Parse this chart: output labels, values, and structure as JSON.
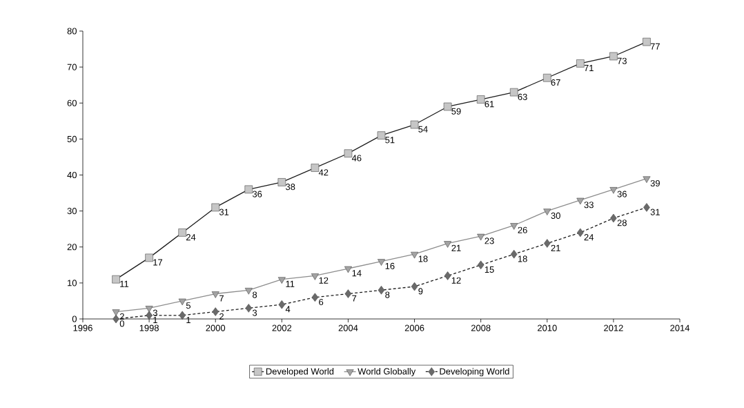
{
  "chart_data": {
    "type": "line",
    "x": [
      1997,
      1998,
      1999,
      2000,
      2001,
      2002,
      2003,
      2004,
      2005,
      2006,
      2007,
      2008,
      2009,
      2010,
      2011,
      2012,
      2013
    ],
    "series": [
      {
        "name": "Developed World",
        "color": "#1a1a1a",
        "marker": "square",
        "line_style": "solid",
        "values": [
          11,
          17,
          24,
          31,
          36,
          38,
          42,
          46,
          51,
          54,
          59,
          61,
          63,
          67,
          71,
          73,
          77
        ]
      },
      {
        "name": "World Globally",
        "color": "#8c8c8c",
        "marker": "triangle",
        "line_style": "solid",
        "values": [
          2,
          3,
          5,
          7,
          8,
          11,
          12,
          14,
          16,
          18,
          21,
          23,
          26,
          30,
          33,
          36,
          39
        ]
      },
      {
        "name": "Developing World",
        "color": "#1a1a1a",
        "marker": "diamond",
        "line_style": "dashed",
        "values": [
          0,
          1,
          1,
          2,
          3,
          4,
          6,
          7,
          8,
          9,
          12,
          15,
          18,
          21,
          24,
          28,
          31
        ]
      }
    ],
    "xlim": [
      1996,
      2014
    ],
    "xticks": [
      1996,
      1998,
      2000,
      2002,
      2004,
      2006,
      2008,
      2010,
      2012,
      2014
    ],
    "ylim": [
      0,
      80
    ],
    "yticks": [
      0,
      10,
      20,
      30,
      40,
      50,
      60,
      70,
      80
    ],
    "data_labels": true,
    "legend": "bottom",
    "grid": false
  }
}
